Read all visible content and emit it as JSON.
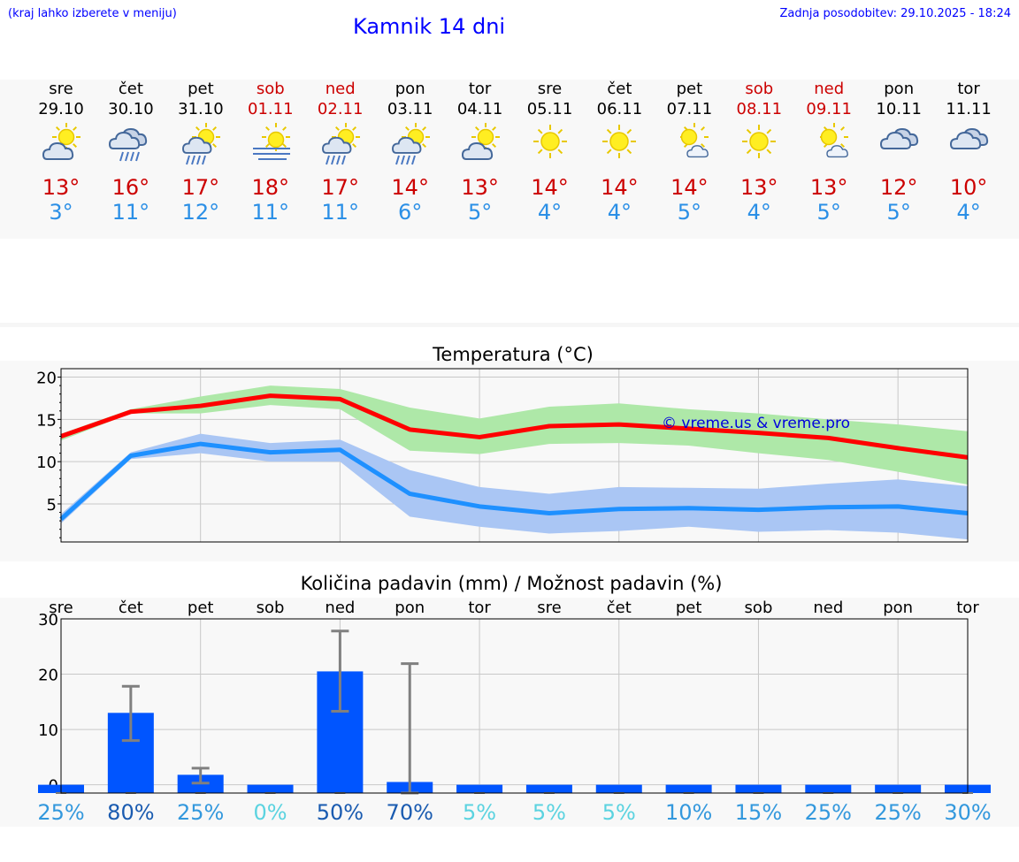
{
  "header": {
    "left_note": "(kraj lahko izberete v meniju)",
    "title": "Kamnik 14 dni",
    "updated": "Zadnja posodobitev: 29.10.2025 - 18:24"
  },
  "days": [
    {
      "name": "sre",
      "date": "29.10",
      "max": "13°",
      "min": "3°",
      "weekend": false,
      "icon": "sun-cloud-icon"
    },
    {
      "name": "čet",
      "date": "30.10",
      "max": "16°",
      "min": "11°",
      "weekend": false,
      "icon": "cloud-rain-icon"
    },
    {
      "name": "pet",
      "date": "31.10",
      "max": "17°",
      "min": "12°",
      "weekend": false,
      "icon": "sun-cloud-rain-icon"
    },
    {
      "name": "sob",
      "date": "01.11",
      "max": "18°",
      "min": "11°",
      "weekend": true,
      "icon": "sun-fog-icon"
    },
    {
      "name": "ned",
      "date": "02.11",
      "max": "17°",
      "min": "11°",
      "weekend": true,
      "icon": "sun-cloud-rain-icon"
    },
    {
      "name": "pon",
      "date": "03.11",
      "max": "14°",
      "min": "6°",
      "weekend": false,
      "icon": "sun-cloud-rain-icon"
    },
    {
      "name": "tor",
      "date": "04.11",
      "max": "13°",
      "min": "5°",
      "weekend": false,
      "icon": "sun-cloud-icon"
    },
    {
      "name": "sre",
      "date": "05.11",
      "max": "14°",
      "min": "4°",
      "weekend": false,
      "icon": "sun-icon"
    },
    {
      "name": "čet",
      "date": "06.11",
      "max": "14°",
      "min": "4°",
      "weekend": false,
      "icon": "sun-icon"
    },
    {
      "name": "pet",
      "date": "07.11",
      "max": "14°",
      "min": "5°",
      "weekend": false,
      "icon": "sun-small-cloud-icon"
    },
    {
      "name": "sob",
      "date": "08.11",
      "max": "13°",
      "min": "4°",
      "weekend": true,
      "icon": "sun-icon"
    },
    {
      "name": "ned",
      "date": "09.11",
      "max": "13°",
      "min": "5°",
      "weekend": true,
      "icon": "sun-small-cloud-icon"
    },
    {
      "name": "pon",
      "date": "10.11",
      "max": "12°",
      "min": "5°",
      "weekend": false,
      "icon": "cloud-icon"
    },
    {
      "name": "tor",
      "date": "11.11",
      "max": "10°",
      "min": "4°",
      "weekend": false,
      "icon": "cloud-icon"
    }
  ],
  "chart_data": [
    {
      "type": "line",
      "title": "Temperatura (°C)",
      "ylim": [
        0.5,
        21
      ],
      "yticks": [
        5,
        10,
        15,
        20
      ],
      "watermark": "© vreme.us & vreme.pro",
      "series": [
        {
          "name": "max",
          "color": "#ff0000",
          "band_color": "#aee8a8",
          "values": [
            13.0,
            15.9,
            16.6,
            17.8,
            17.4,
            13.8,
            12.9,
            14.2,
            14.4,
            13.9,
            13.4,
            12.8,
            11.6,
            10.5
          ],
          "upper": [
            13.3,
            16.2,
            17.7,
            19.0,
            18.6,
            16.4,
            15.1,
            16.5,
            16.9,
            16.2,
            15.7,
            15.0,
            14.4,
            13.6
          ],
          "lower": [
            12.5,
            15.7,
            15.7,
            16.7,
            16.2,
            11.3,
            10.9,
            12.1,
            12.2,
            11.9,
            11.0,
            10.2,
            8.8,
            7.3
          ]
        },
        {
          "name": "min",
          "color": "#1e90ff",
          "band_color": "#aac6f4",
          "values": [
            3.2,
            10.7,
            12.1,
            11.1,
            11.4,
            6.2,
            4.7,
            3.9,
            4.4,
            4.5,
            4.3,
            4.6,
            4.7,
            3.9
          ],
          "upper": [
            3.8,
            11.1,
            13.3,
            12.2,
            12.6,
            9.0,
            7.0,
            6.2,
            7.0,
            6.9,
            6.8,
            7.4,
            7.9,
            7.1
          ],
          "lower": [
            2.7,
            10.3,
            11.0,
            10.0,
            10.0,
            3.5,
            2.3,
            1.5,
            1.8,
            2.3,
            1.7,
            1.9,
            1.6,
            0.8
          ]
        }
      ]
    },
    {
      "type": "bar",
      "title": "Količina padavin (mm) / Možnost padavin (%)",
      "categories": [
        "sre",
        "čet",
        "pet",
        "sob",
        "ned",
        "pon",
        "tor",
        "sre",
        "čet",
        "pet",
        "sob",
        "ned",
        "pon",
        "tor"
      ],
      "ylim": [
        -1.5,
        30
      ],
      "yticks": [
        0,
        10,
        20,
        30
      ],
      "values": [
        0,
        13.0,
        1.8,
        0,
        20.5,
        0.5,
        0,
        0,
        0,
        0,
        0,
        0,
        0,
        0
      ],
      "err_low": [
        0,
        8.0,
        0.3,
        0,
        13.3,
        0,
        0,
        0,
        0,
        0,
        0,
        0,
        0,
        0
      ],
      "err_high": [
        0,
        17.8,
        3.0,
        0,
        27.8,
        21.9,
        0,
        0,
        0,
        0,
        0,
        0,
        0,
        0
      ],
      "probability": [
        "25%",
        "80%",
        "25%",
        "0%",
        "50%",
        "70%",
        "5%",
        "5%",
        "5%",
        "10%",
        "15%",
        "25%",
        "25%",
        "30%"
      ],
      "prob_colors": [
        "#3398dd",
        "#1a5bb0",
        "#3398dd",
        "#5bd3e0",
        "#1a5bb0",
        "#1a5bb0",
        "#5bd3e0",
        "#5bd3e0",
        "#5bd3e0",
        "#3398dd",
        "#3398dd",
        "#3398dd",
        "#3398dd",
        "#3398dd"
      ],
      "bar_color": "#0055ff"
    }
  ]
}
